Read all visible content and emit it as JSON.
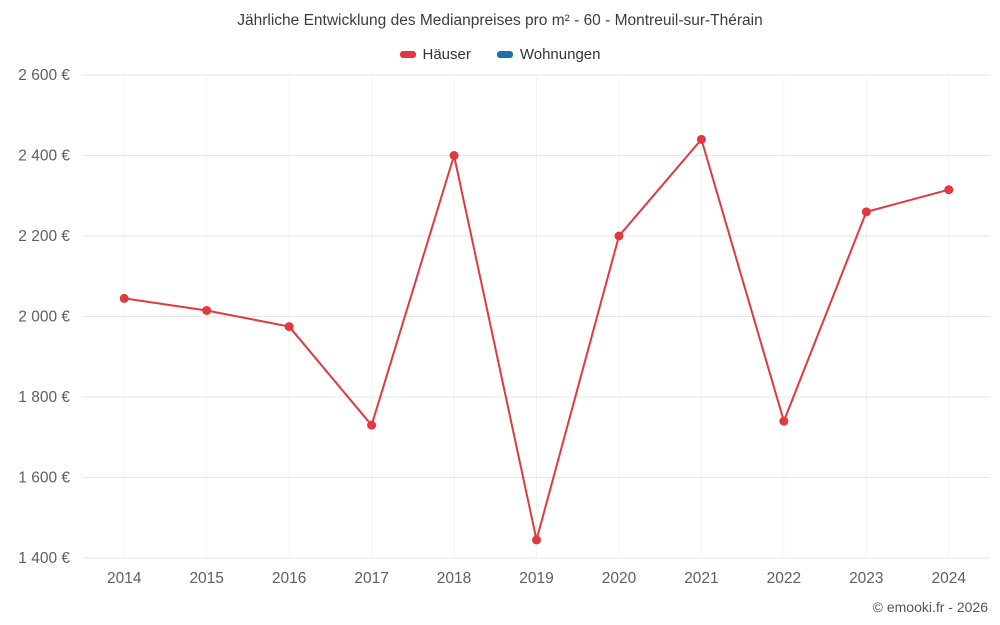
{
  "title": "Jährliche Entwicklung des Medianpreises pro m² - 60 - Montreuil-sur-Thérain",
  "footer": "© emooki.fr - 2026",
  "legend": [
    {
      "label": "Häuser",
      "color": "#e0393f"
    },
    {
      "label": "Wohnungen",
      "color": "#1c6ea8"
    }
  ],
  "chart_data": {
    "type": "line",
    "title": "Jährliche Entwicklung des Medianpreises pro m² - 60 - Montreuil-sur-Thérain",
    "categories": [
      "2014",
      "2015",
      "2016",
      "2017",
      "2018",
      "2019",
      "2020",
      "2021",
      "2022",
      "2023",
      "2024"
    ],
    "series": [
      {
        "name": "Häuser",
        "color": "#e0393f",
        "values": [
          2045,
          2015,
          1975,
          1730,
          2400,
          1445,
          2200,
          2440,
          1740,
          2260,
          2315
        ]
      },
      {
        "name": "Wohnungen",
        "color": "#1c6ea8",
        "values": []
      }
    ],
    "xlabel": "",
    "ylabel": "",
    "ylim": [
      1400,
      2600
    ],
    "yticks": [
      1400,
      1600,
      1800,
      2000,
      2200,
      2400,
      2600
    ],
    "ytick_suffix": " €",
    "grid": true,
    "legend_position": "top"
  }
}
